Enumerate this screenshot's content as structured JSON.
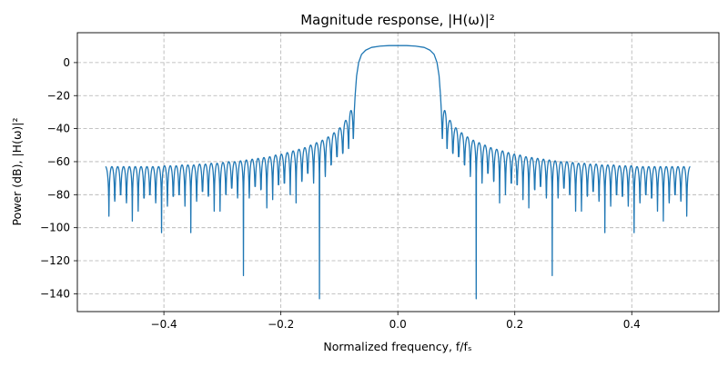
{
  "chart_data": {
    "type": "line",
    "title": "Magnitude response, |H(ω)|²",
    "xlabel": "Normalized frequency, f/fₛ",
    "ylabel": "Power (dB), |H(ω)|²",
    "xlim": [
      -0.548,
      0.549
    ],
    "ylim": [
      -150.8,
      18.1
    ],
    "grid": true,
    "grid_style": "dashed",
    "line_color": "#1f77b4",
    "grid_color": "#b0b0b0",
    "xticks": [
      -0.4,
      -0.2,
      0,
      0.2,
      0.4
    ],
    "xtick_labels": [
      "−0.4",
      "−0.2",
      "0.0",
      "0.2",
      "0.4"
    ],
    "yticks": [
      0,
      -20,
      -40,
      -60,
      -80,
      -100,
      -120,
      -140
    ],
    "ytick_labels": [
      "0",
      "−20",
      "−40",
      "−60",
      "−80",
      "−100",
      "−120",
      "−140"
    ],
    "series": [
      {
        "x": [
          -0.5,
          -0.494,
          -0.489,
          -0.484,
          -0.479,
          -0.474,
          -0.469,
          -0.464,
          -0.459,
          -0.454,
          -0.449,
          -0.444,
          -0.439,
          -0.434,
          -0.429,
          -0.424,
          -0.419,
          -0.414,
          -0.409,
          -0.404,
          -0.399,
          -0.394,
          -0.389,
          -0.384,
          -0.379,
          -0.374,
          -0.369,
          -0.364,
          -0.359,
          -0.354,
          -0.349,
          -0.344,
          -0.339,
          -0.334,
          -0.329,
          -0.324,
          -0.319,
          -0.314,
          -0.309,
          -0.304,
          -0.299,
          -0.294,
          -0.289,
          -0.284,
          -0.279,
          -0.274,
          -0.269,
          -0.264,
          -0.259,
          -0.254,
          -0.249,
          -0.244,
          -0.239,
          -0.234,
          -0.229,
          -0.224,
          -0.219,
          -0.214,
          -0.209,
          -0.204,
          -0.199,
          -0.194,
          -0.189,
          -0.184,
          -0.179,
          -0.174,
          -0.169,
          -0.164,
          -0.159,
          -0.154,
          -0.149,
          -0.144,
          -0.139,
          -0.134,
          -0.129,
          -0.124,
          -0.119,
          -0.114,
          -0.109,
          -0.104,
          -0.099,
          -0.094,
          -0.089,
          -0.084,
          -0.08,
          -0.076,
          -0.0745,
          -0.073,
          -0.0705,
          -0.067,
          -0.062,
          -0.055,
          -0.045,
          -0.03,
          -0.015,
          0,
          0.015,
          0.03,
          0.045,
          0.055,
          0.062,
          0.067,
          0.0705,
          0.073,
          0.0745,
          0.076,
          0.08,
          0.084,
          0.089,
          0.094,
          0.099,
          0.104,
          0.109,
          0.114,
          0.119,
          0.124,
          0.129,
          0.134,
          0.139,
          0.144,
          0.149,
          0.154,
          0.159,
          0.164,
          0.169,
          0.174,
          0.179,
          0.184,
          0.189,
          0.194,
          0.199,
          0.204,
          0.209,
          0.214,
          0.219,
          0.224,
          0.229,
          0.234,
          0.239,
          0.244,
          0.249,
          0.254,
          0.259,
          0.264,
          0.269,
          0.274,
          0.279,
          0.284,
          0.289,
          0.294,
          0.299,
          0.304,
          0.309,
          0.314,
          0.319,
          0.324,
          0.329,
          0.334,
          0.339,
          0.344,
          0.349,
          0.354,
          0.359,
          0.364,
          0.369,
          0.374,
          0.379,
          0.384,
          0.389,
          0.394,
          0.399,
          0.404,
          0.409,
          0.414,
          0.419,
          0.424,
          0.429,
          0.434,
          0.439,
          0.444,
          0.449,
          0.454,
          0.459,
          0.464,
          0.469,
          0.474,
          0.479,
          0.484,
          0.489,
          0.494,
          0.5
        ],
        "y": [
          -63,
          -93,
          -63,
          -84,
          -63,
          -80,
          -63,
          -85,
          -63,
          -96,
          -63,
          -90,
          -63,
          -82,
          -63,
          -80,
          -63,
          -85,
          -63,
          -103,
          -62.5,
          -87,
          -62.5,
          -81,
          -62.5,
          -80,
          -62,
          -87,
          -62,
          -103,
          -62,
          -84,
          -61.5,
          -78,
          -61.5,
          -81,
          -61,
          -90,
          -61,
          -90,
          -60.5,
          -80,
          -60,
          -76,
          -60,
          -82,
          -59.5,
          -129,
          -59,
          -82,
          -58.5,
          -75,
          -58,
          -77,
          -57.5,
          -88,
          -57,
          -83,
          -56,
          -74,
          -55.5,
          -73,
          -54.5,
          -80,
          -53.5,
          -85,
          -52.5,
          -72,
          -51.5,
          -67,
          -50,
          -73,
          -48.5,
          -143,
          -47,
          -69,
          -45,
          -62,
          -42.5,
          -57,
          -39.5,
          -55,
          -35,
          -52,
          -29,
          -46,
          -30,
          -20,
          -8,
          0,
          5,
          7.5,
          9.2,
          10,
          10.3,
          10.3,
          10.3,
          10,
          9.2,
          7.5,
          5,
          0,
          -8,
          -20,
          -30,
          -46,
          -29,
          -52,
          -35,
          -55,
          -39.5,
          -57,
          -42.5,
          -62,
          -45,
          -69,
          -47,
          -143,
          -48.5,
          -73,
          -50,
          -67,
          -51.5,
          -72,
          -52.5,
          -85,
          -53.5,
          -80,
          -54.5,
          -73,
          -55.5,
          -74,
          -56,
          -83,
          -57,
          -88,
          -57.5,
          -77,
          -58,
          -75,
          -58.5,
          -82,
          -59,
          -129,
          -59.5,
          -82,
          -60,
          -76,
          -60,
          -80,
          -60.5,
          -90,
          -61,
          -90,
          -61,
          -81,
          -61.5,
          -78,
          -61.5,
          -84,
          -62,
          -103,
          -62,
          -87,
          -62,
          -80,
          -62.5,
          -81,
          -62.5,
          -87,
          -62.5,
          -103,
          -63,
          -85,
          -63,
          -80,
          -63,
          -82,
          -63,
          -90,
          -63,
          -96,
          -63,
          -85,
          -63,
          -80,
          -63,
          -84,
          -63,
          -93,
          -63
        ]
      }
    ]
  }
}
